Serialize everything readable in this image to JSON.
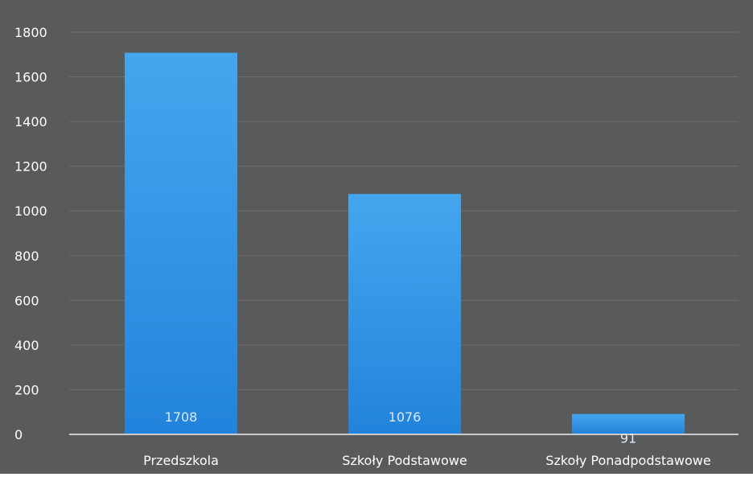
{
  "chart_data": {
    "type": "bar",
    "categories": [
      "Przedszkola",
      "Szkoły Podstawowe",
      "Szkoły Ponadpodstawowe"
    ],
    "values": [
      1708,
      1076,
      91
    ],
    "data_labels": [
      "1708",
      "1076",
      "91"
    ],
    "title": "",
    "xlabel": "",
    "ylabel": "",
    "ylim": [
      0,
      1800
    ],
    "yticks": [
      "0",
      "200",
      "400",
      "600",
      "800",
      "1000",
      "1200",
      "1400",
      "1600",
      "1800"
    ],
    "grid": true,
    "legend": "none",
    "colors": {
      "background": "#595b5b",
      "bar_top": "#45a6ee",
      "bar_bottom": "#2283dc",
      "gridline": "#6c6e6e",
      "axis_line": "#c8cacb",
      "tick_text": "#ffffff",
      "category_text": "#ffffff",
      "data_label_text": "#dbe8f5"
    }
  }
}
